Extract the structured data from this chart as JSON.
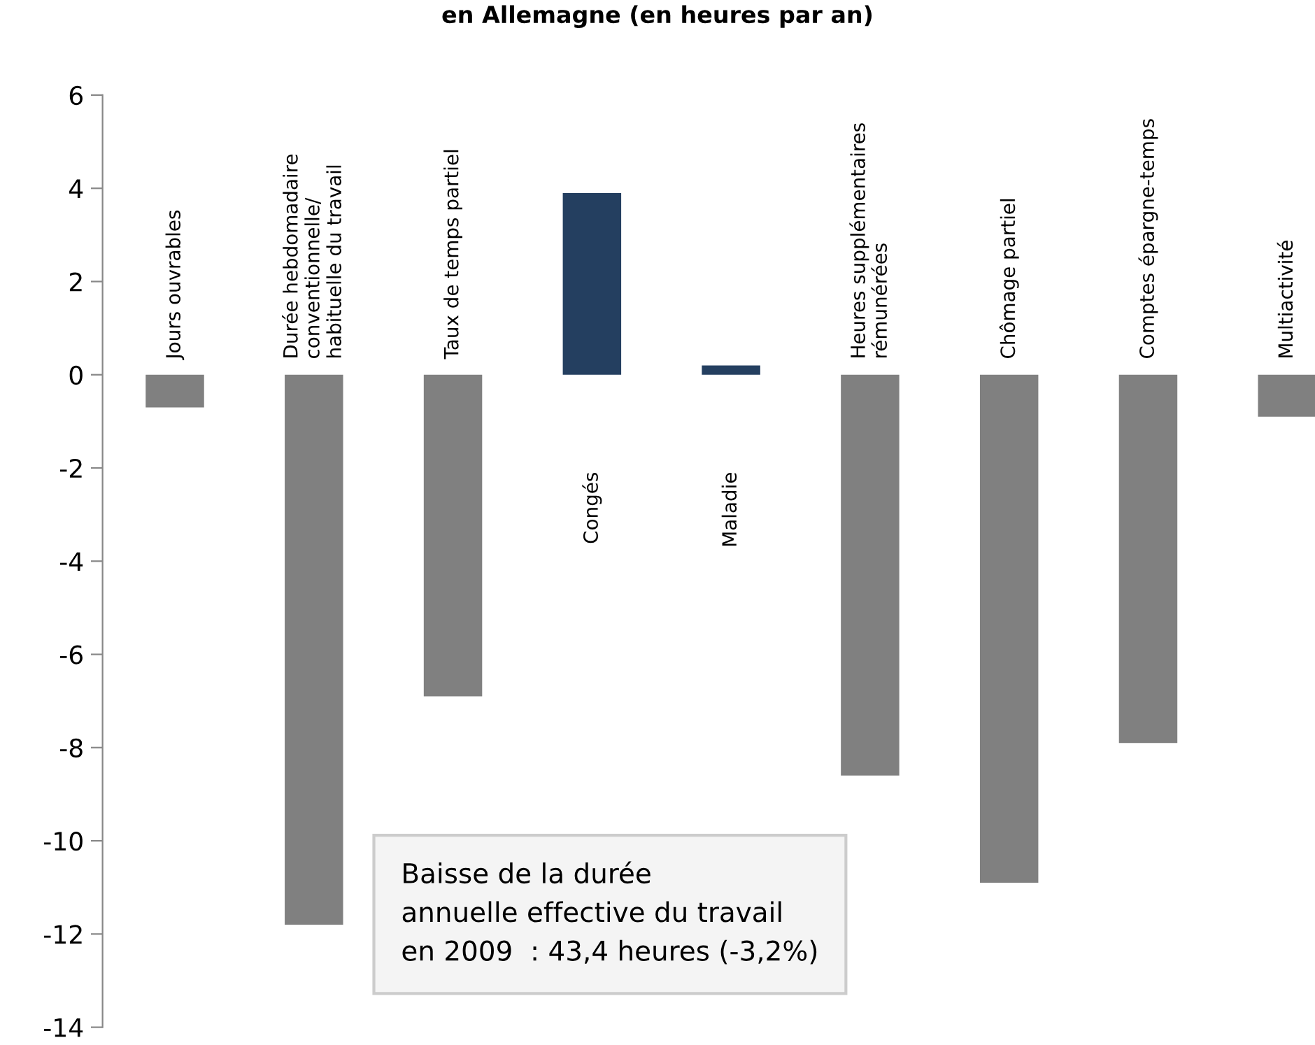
{
  "chart_data": {
    "type": "bar",
    "title": "en Allemagne (en heures par an)",
    "categories": [
      "Jours ouvrables",
      "Durée hebdomadaire\nconventionnelle/\nhabituelle du travail",
      "Taux de temps partiel",
      "Congés",
      "Maladie",
      "Heures supplémentaires\nrémunérées",
      "Chômage partiel",
      "Comptes épargne-temps",
      "Multiactivité"
    ],
    "values": [
      -0.7,
      -11.8,
      -6.9,
      3.9,
      0.2,
      -8.6,
      -10.9,
      -7.9,
      -0.9
    ],
    "colors": [
      "#808080",
      "#808080",
      "#808080",
      "#243f60",
      "#243f60",
      "#808080",
      "#808080",
      "#808080",
      "#808080"
    ],
    "ylim": [
      -14,
      6
    ],
    "yticks": [
      -14,
      -12,
      -10,
      -8,
      -6,
      -4,
      -2,
      0,
      2,
      4,
      6
    ],
    "grid": false,
    "annotations": [
      "Baisse de la durée\nannuelle effective du travail\nen 2009  : 43,4 heures (-3,2%)"
    ]
  }
}
